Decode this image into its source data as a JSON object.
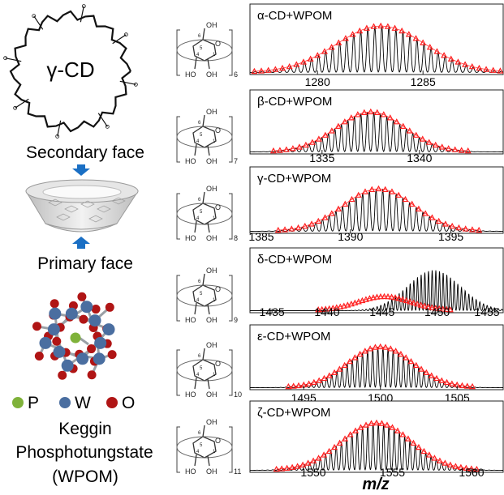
{
  "left": {
    "macrocycle_label": "γ-CD",
    "secondary_face": "Secondary face",
    "primary_face": "Primary face",
    "legend": [
      {
        "label": "P",
        "color": "#7fb23a"
      },
      {
        "label": "W",
        "color": "#4a6ea0"
      },
      {
        "label": "O",
        "color": "#b01515"
      }
    ],
    "title_lines": [
      "Keggin",
      "Phosphotungstate",
      "(WPOM)"
    ]
  },
  "structures": [
    {
      "subscript": "6"
    },
    {
      "subscript": "7"
    },
    {
      "subscript": "8"
    },
    {
      "subscript": "9"
    },
    {
      "subscript": "10"
    },
    {
      "subscript": "11"
    }
  ],
  "structure_atoms": {
    "oh_top": "OH",
    "ho_left": "HO",
    "oh_right": "OH",
    "ring_o": "O",
    "c6": "6",
    "c5": "5",
    "c4": "4",
    "c1": "1"
  },
  "colors": {
    "experimental": "#000000",
    "simulated": "#ff2020",
    "arrow": "#1a6fc4"
  },
  "chart_data": [
    {
      "type": "line",
      "title": "α-CD+WPOM",
      "xlim": [
        1276.8,
        1288.8
      ],
      "xticks": [
        1280,
        1285
      ],
      "center": 1283.0,
      "sigma": 2.1,
      "spacing": 0.333,
      "series": [
        {
          "values": "experimental"
        },
        {
          "values": "simulated"
        }
      ]
    },
    {
      "type": "line",
      "title": "β-CD+WPOM",
      "xlim": [
        1331.3,
        1344.3
      ],
      "xticks": [
        1335,
        1340
      ],
      "center": 1337.5,
      "sigma": 1.75,
      "spacing": 0.333,
      "series": [
        {
          "values": "experimental"
        },
        {
          "values": "simulated"
        }
      ]
    },
    {
      "type": "line",
      "title": "γ-CD+WPOM",
      "xlim": [
        1385.0,
        1397.6
      ],
      "xticks": [
        1385,
        1390,
        1395
      ],
      "center": 1391.4,
      "sigma": 1.75,
      "spacing": 0.333,
      "series": [
        {
          "values": "experimental"
        },
        {
          "values": "simulated"
        }
      ]
    },
    {
      "type": "line",
      "title": "δ-CD+WPOM",
      "xlim": [
        1433.0,
        1456.0
      ],
      "xticks": [
        1435,
        1440,
        1445,
        1450,
        1455
      ],
      "center": 1449.7,
      "sigma": 2.4,
      "spacing": 0.333,
      "simulated_center": 1445.2,
      "simulated_peak": 0.34,
      "series": [
        {
          "values": "experimental"
        },
        {
          "values": "simulated"
        }
      ]
    },
    {
      "type": "line",
      "title": "ε-CD+WPOM",
      "xlim": [
        1491.5,
        1508.0
      ],
      "xticks": [
        1495,
        1500,
        1505
      ],
      "center": 1500.0,
      "sigma": 2.1,
      "spacing": 0.333,
      "series": [
        {
          "values": "experimental"
        },
        {
          "values": "simulated"
        }
      ]
    },
    {
      "type": "line",
      "title": "ζ-CD+WPOM",
      "xlim": [
        1546.0,
        1562.0
      ],
      "xticks": [
        1550,
        1555,
        1560
      ],
      "center": 1554.0,
      "sigma": 2.2,
      "spacing": 0.333,
      "series": [
        {
          "values": "experimental"
        },
        {
          "values": "simulated"
        }
      ]
    }
  ],
  "xlabel": "m/z"
}
